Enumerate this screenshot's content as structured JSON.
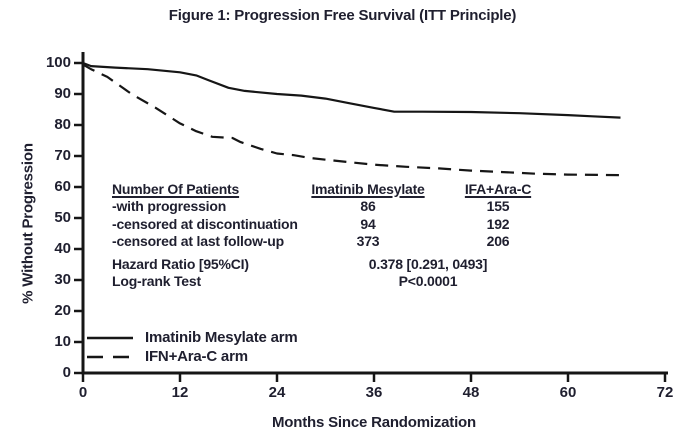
{
  "title": "Figure 1: Progression Free Survival (ITT Principle)",
  "colors": {
    "text": "#1f1f2f",
    "line": "#161616",
    "background": "#ffffff"
  },
  "chart_data": {
    "type": "line",
    "title": "Figure 1: Progression Free Survival (ITT Principle)",
    "xlabel": "Months Since Randomization",
    "ylabel": "% Without Progression",
    "xlim": [
      0,
      72
    ],
    "ylim": [
      0,
      100
    ],
    "xticks": [
      0,
      12,
      24,
      36,
      48,
      60,
      72
    ],
    "yticks": [
      0,
      10,
      20,
      30,
      40,
      50,
      60,
      70,
      80,
      90,
      100
    ],
    "grid": false,
    "legend_position": "lower-left",
    "series": [
      {
        "name": "Imatinib Mesylate arm",
        "style": "solid",
        "x": [
          0,
          1,
          4,
          8,
          12,
          14,
          15.5,
          18,
          20,
          24,
          27,
          30,
          33,
          36,
          38.5,
          42,
          48,
          54,
          60,
          63,
          66.5
        ],
        "y": [
          100,
          99,
          98.5,
          98,
          97,
          96,
          94.5,
          92,
          91,
          90,
          89.5,
          88.5,
          87,
          85.5,
          84.3,
          84.3,
          84.2,
          83.8,
          83.2,
          82.8,
          82.4
        ]
      },
      {
        "name": "IFN+Ara-C arm",
        "style": "dashed",
        "x": [
          0,
          1,
          3,
          6,
          9,
          12,
          14,
          16,
          18.5,
          19.5,
          22,
          24,
          26,
          28,
          30,
          33,
          36,
          40,
          44,
          48,
          52,
          56,
          60,
          64,
          67
        ],
        "y": [
          99.5,
          98,
          95.5,
          90,
          85.5,
          80.5,
          78,
          76.2,
          75.8,
          74.5,
          72.3,
          70.8,
          70.3,
          69.4,
          68.8,
          68,
          67.2,
          66.5,
          66,
          65.3,
          64.8,
          64.3,
          64,
          63.9,
          63.8
        ]
      }
    ]
  },
  "inset_table": {
    "header": {
      "col0": "Number Of Patients",
      "col1": "Imatinib Mesylate",
      "col2": "IFA+Ara-C"
    },
    "rows": [
      {
        "label": "-with progression",
        "imatinib": "86",
        "ifa": "155"
      },
      {
        "label": "-censored at discontinuation",
        "imatinib": "94",
        "ifa": "192"
      },
      {
        "label": "-censored at last follow-up",
        "imatinib": "373",
        "ifa": "206"
      }
    ],
    "hazard_ratio_label": "Hazard Ratio [95%CI)",
    "hazard_ratio_value": "0.378 [0.291, 0493]",
    "logrank_label": "Log-rank Test",
    "logrank_value": "P<0.0001"
  },
  "legend": [
    {
      "label": "Imatinib Mesylate arm",
      "style": "solid"
    },
    {
      "label": "IFN+Ara-C arm",
      "style": "dashed"
    }
  ]
}
